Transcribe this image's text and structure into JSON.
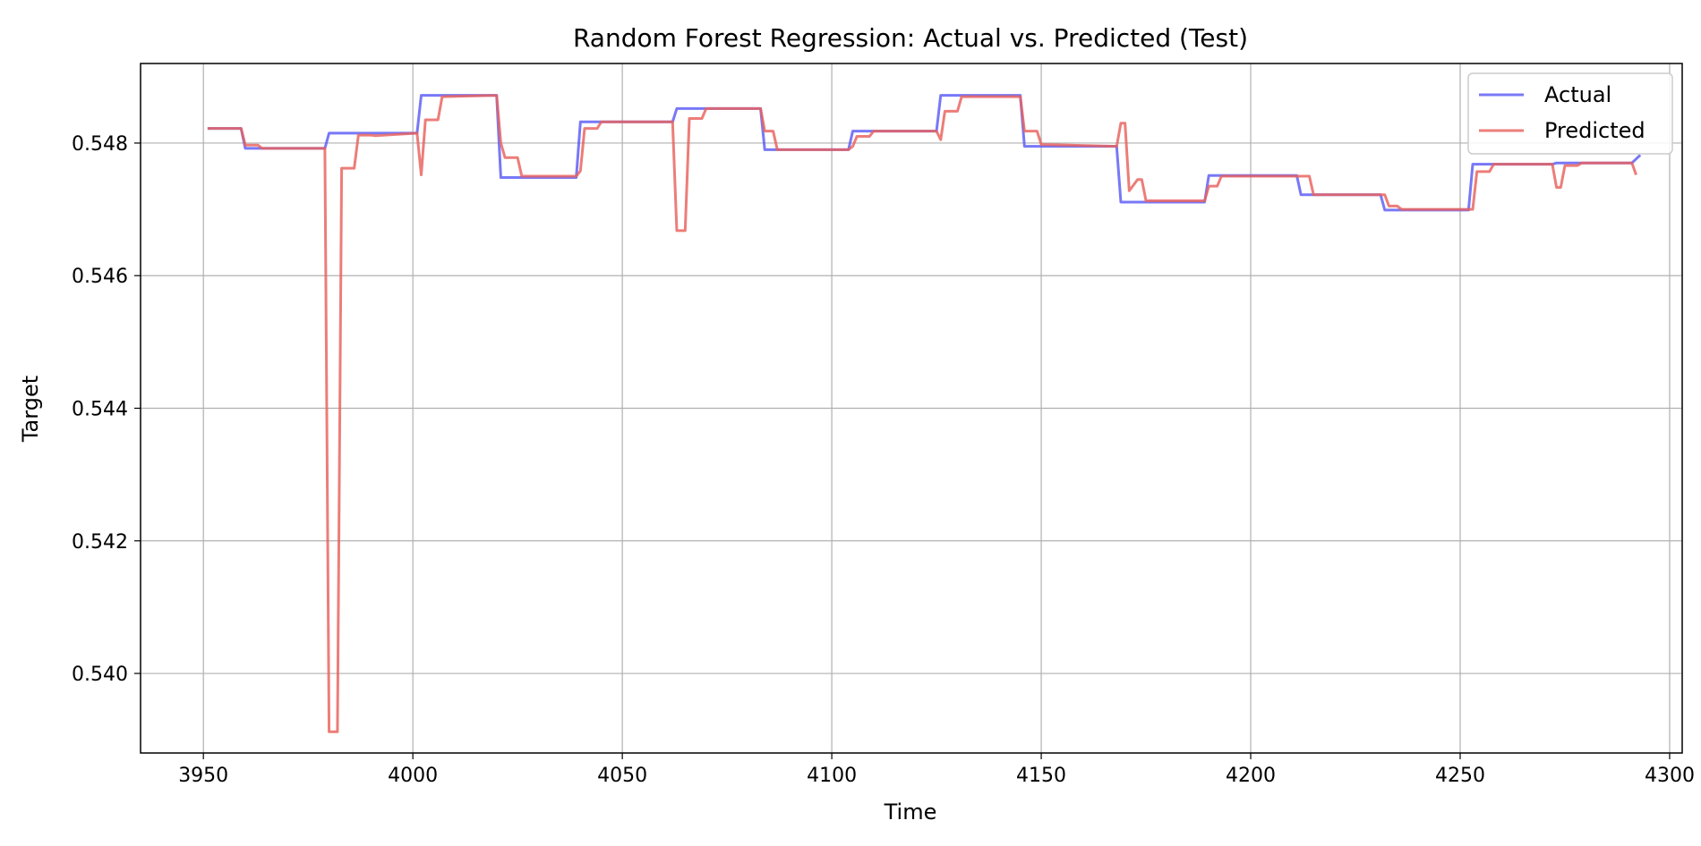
{
  "chart_data": {
    "type": "line",
    "title": "Random Forest Regression: Actual vs. Predicted (Test)",
    "xlabel": "Time",
    "ylabel": "Target",
    "xlim": [
      3935,
      4303
    ],
    "ylim": [
      0.5388,
      0.5492
    ],
    "xticks": [
      3950,
      4000,
      4050,
      4100,
      4150,
      4200,
      4250,
      4300
    ],
    "yticks": [
      0.54,
      0.542,
      0.544,
      0.546,
      0.548
    ],
    "xtick_labels": [
      "3950",
      "4000",
      "4050",
      "4100",
      "4150",
      "4200",
      "4250",
      "4300"
    ],
    "ytick_labels": [
      "0.540",
      "0.542",
      "0.544",
      "0.546",
      "0.548"
    ],
    "grid": true,
    "legend_position": "top-right",
    "series": [
      {
        "name": "Actual",
        "color": "#5a5af5",
        "points": [
          [
            3951,
            0.54822
          ],
          [
            3959,
            0.54822
          ],
          [
            3960,
            0.54792
          ],
          [
            3979,
            0.54792
          ],
          [
            3980,
            0.54815
          ],
          [
            4001,
            0.54815
          ],
          [
            4002,
            0.54872
          ],
          [
            4020,
            0.54872
          ],
          [
            4021,
            0.54748
          ],
          [
            4039,
            0.54748
          ],
          [
            4040,
            0.54832
          ],
          [
            4062,
            0.54832
          ],
          [
            4063,
            0.54852
          ],
          [
            4083,
            0.54852
          ],
          [
            4084,
            0.5479
          ],
          [
            4104,
            0.5479
          ],
          [
            4105,
            0.54818
          ],
          [
            4125,
            0.54818
          ],
          [
            4126,
            0.54872
          ],
          [
            4145,
            0.54872
          ],
          [
            4146,
            0.54795
          ],
          [
            4168,
            0.54795
          ],
          [
            4169,
            0.54711
          ],
          [
            4189,
            0.54711
          ],
          [
            4190,
            0.54751
          ],
          [
            4211,
            0.54751
          ],
          [
            4212,
            0.54722
          ],
          [
            4231,
            0.54722
          ],
          [
            4232,
            0.54699
          ],
          [
            4252,
            0.54699
          ],
          [
            4253,
            0.54768
          ],
          [
            4272,
            0.54768
          ],
          [
            4273,
            0.5477
          ],
          [
            4291,
            0.5477
          ],
          [
            4293,
            0.54782
          ]
        ]
      },
      {
        "name": "Predicted",
        "color": "#e8605c",
        "points": [
          [
            3951,
            0.54822
          ],
          [
            3959,
            0.54822
          ],
          [
            3960,
            0.54797
          ],
          [
            3963,
            0.54797
          ],
          [
            3964,
            0.54792
          ],
          [
            3979,
            0.54792
          ],
          [
            3980,
            0.53912
          ],
          [
            3982,
            0.53912
          ],
          [
            3983,
            0.54762
          ],
          [
            3986,
            0.54762
          ],
          [
            3987,
            0.54812
          ],
          [
            3990,
            0.54812
          ],
          [
            3991,
            0.54811
          ],
          [
            4001,
            0.54815
          ],
          [
            4002,
            0.54752
          ],
          [
            4003,
            0.54835
          ],
          [
            4006,
            0.54835
          ],
          [
            4007,
            0.5487
          ],
          [
            4020,
            0.54872
          ],
          [
            4021,
            0.548
          ],
          [
            4022,
            0.54778
          ],
          [
            4025,
            0.54778
          ],
          [
            4026,
            0.5475
          ],
          [
            4039,
            0.5475
          ],
          [
            4040,
            0.54758
          ],
          [
            4041,
            0.54822
          ],
          [
            4044,
            0.54822
          ],
          [
            4045,
            0.54832
          ],
          [
            4062,
            0.54832
          ],
          [
            4063,
            0.54668
          ],
          [
            4065,
            0.54668
          ],
          [
            4066,
            0.54837
          ],
          [
            4069,
            0.54837
          ],
          [
            4070,
            0.54852
          ],
          [
            4083,
            0.54852
          ],
          [
            4084,
            0.54818
          ],
          [
            4086,
            0.54818
          ],
          [
            4087,
            0.5479
          ],
          [
            4104,
            0.5479
          ],
          [
            4105,
            0.54795
          ],
          [
            4106,
            0.5481
          ],
          [
            4109,
            0.5481
          ],
          [
            4110,
            0.54818
          ],
          [
            4125,
            0.54818
          ],
          [
            4126,
            0.54805
          ],
          [
            4127,
            0.54848
          ],
          [
            4130,
            0.54848
          ],
          [
            4131,
            0.5487
          ],
          [
            4145,
            0.5487
          ],
          [
            4146,
            0.54818
          ],
          [
            4149,
            0.54818
          ],
          [
            4150,
            0.54798
          ],
          [
            4168,
            0.54795
          ],
          [
            4169,
            0.5483
          ],
          [
            4170,
            0.5483
          ],
          [
            4171,
            0.54728
          ],
          [
            4173,
            0.54745
          ],
          [
            4174,
            0.54745
          ],
          [
            4175,
            0.54713
          ],
          [
            4189,
            0.54713
          ],
          [
            4190,
            0.54735
          ],
          [
            4192,
            0.54735
          ],
          [
            4193,
            0.5475
          ],
          [
            4214,
            0.5475
          ],
          [
            4215,
            0.54722
          ],
          [
            4232,
            0.54722
          ],
          [
            4233,
            0.54705
          ],
          [
            4235,
            0.54705
          ],
          [
            4236,
            0.547
          ],
          [
            4253,
            0.547
          ],
          [
            4254,
            0.54757
          ],
          [
            4257,
            0.54757
          ],
          [
            4258,
            0.54768
          ],
          [
            4272,
            0.54768
          ],
          [
            4273,
            0.54733
          ],
          [
            4274,
            0.54733
          ],
          [
            4275,
            0.54766
          ],
          [
            4278,
            0.54766
          ],
          [
            4279,
            0.5477
          ],
          [
            4291,
            0.5477
          ],
          [
            4292,
            0.54752
          ]
        ]
      }
    ]
  }
}
